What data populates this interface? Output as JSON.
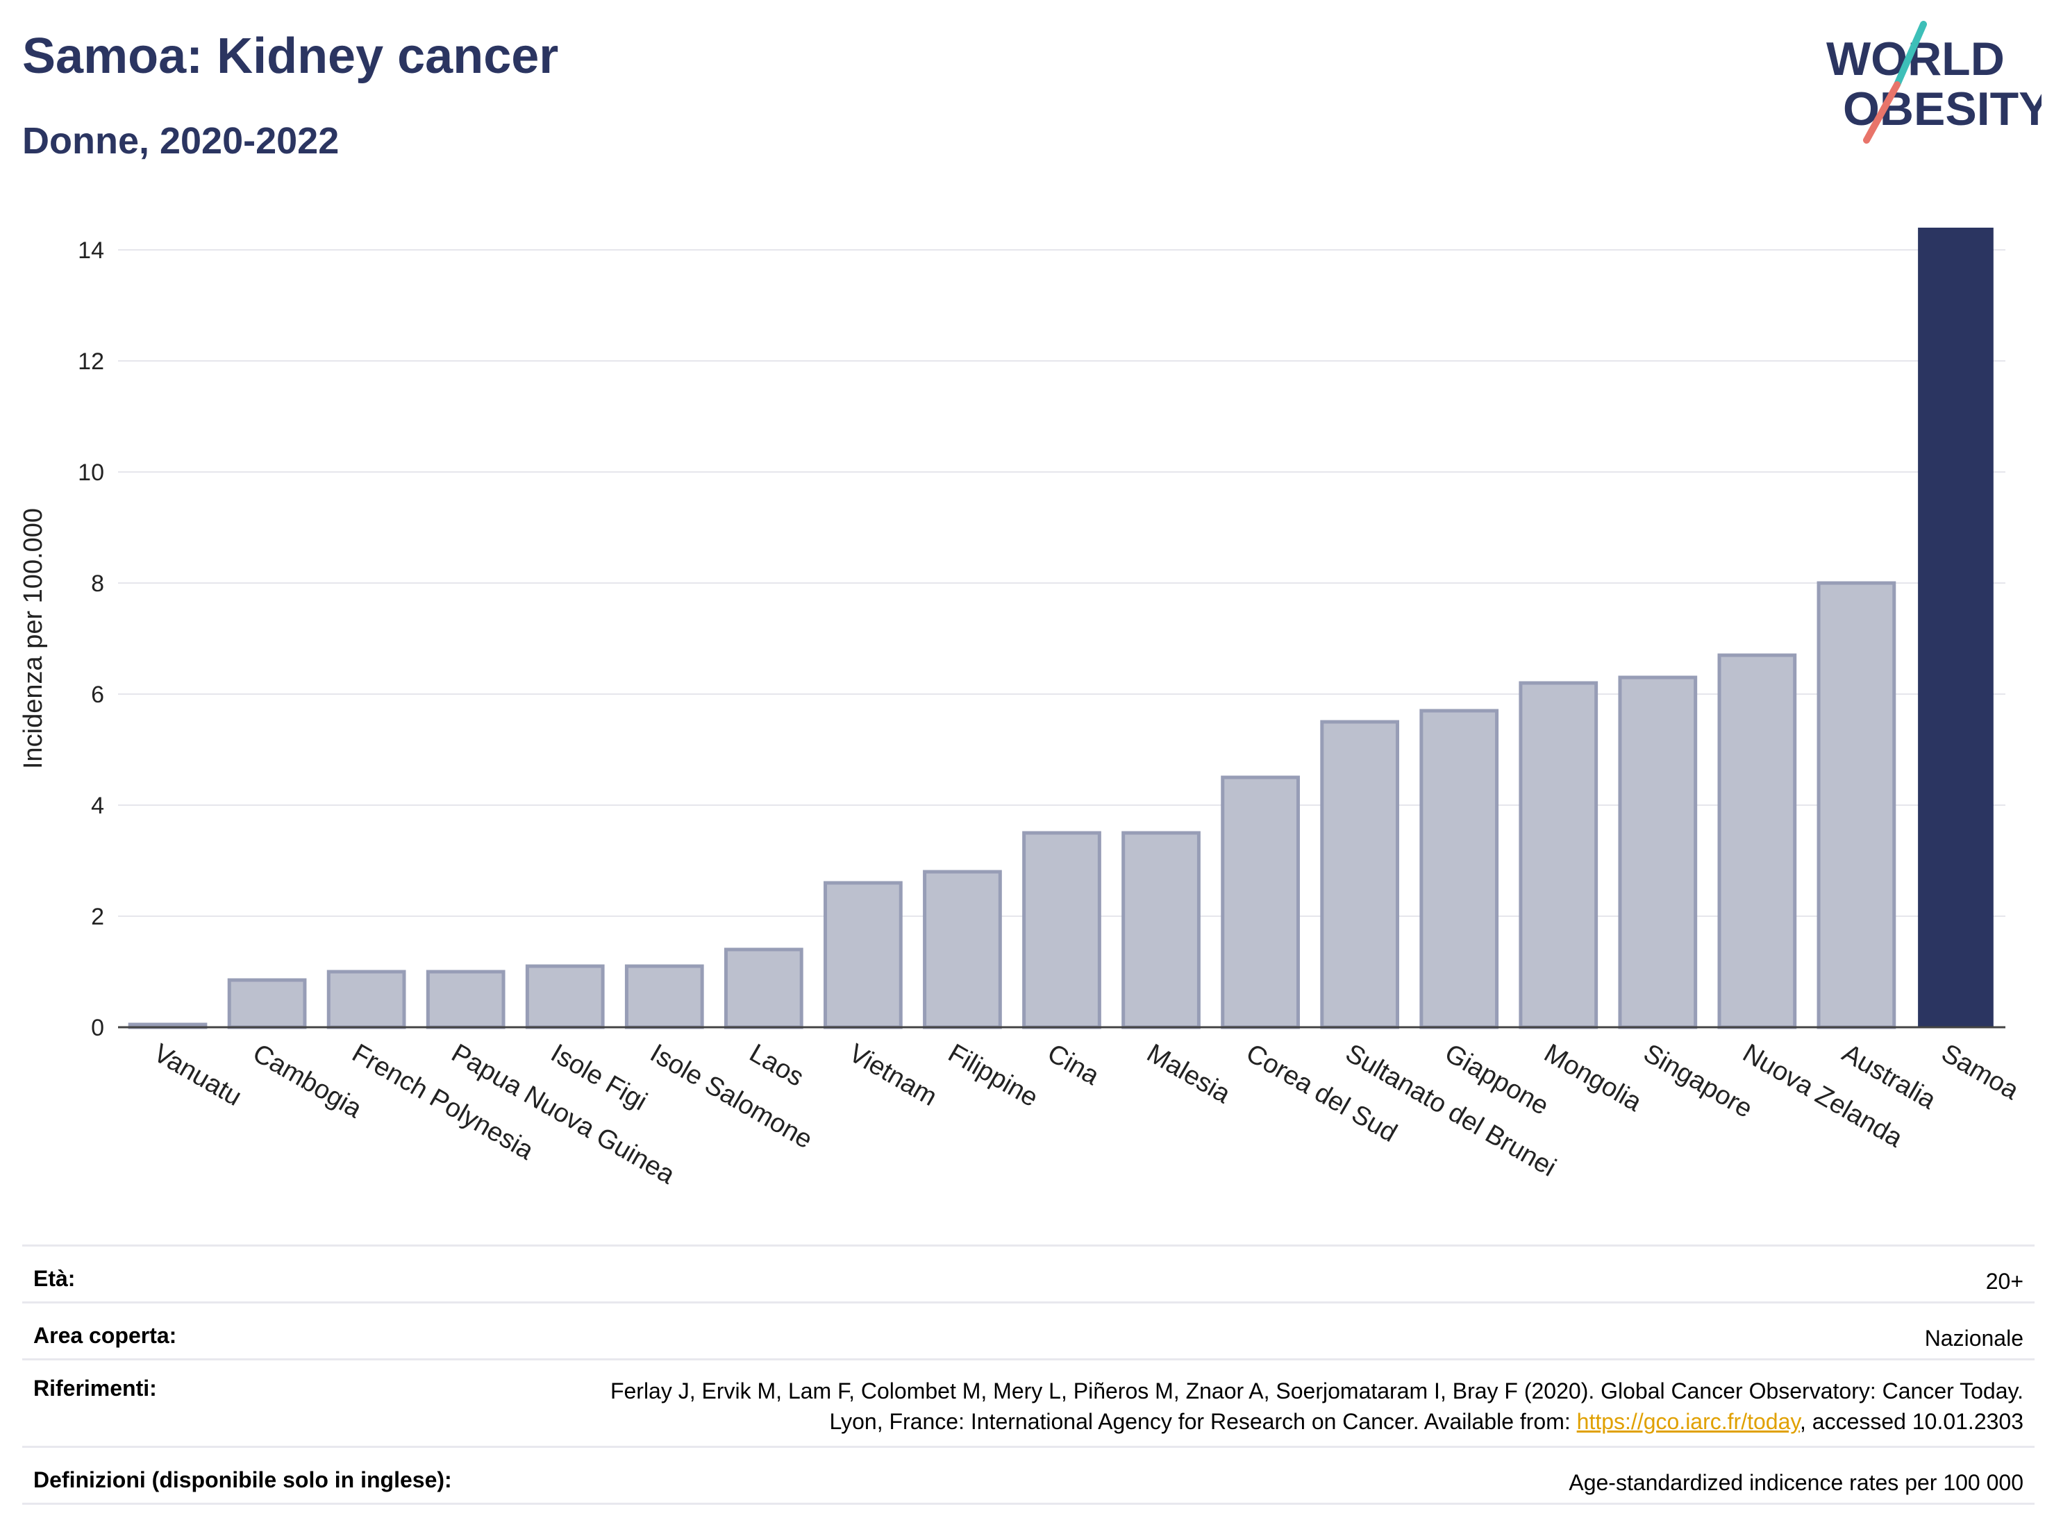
{
  "header": {
    "title": "Samoa: Kidney cancer",
    "subtitle": "Donne, 2020-2022"
  },
  "logo": {
    "line1": "WORLD",
    "line2": "OBESITY"
  },
  "colors": {
    "highlight": "#2b3561",
    "bar_fill": "#bcc0ce",
    "bar_stroke": "#979db6",
    "title": "#2b3561",
    "link": "#e0a000"
  },
  "chart_data": {
    "type": "bar",
    "ylabel": "Incidenza per 100.000",
    "xlabel": "",
    "ylim": [
      0,
      14.5
    ],
    "yticks": [
      0,
      2,
      4,
      6,
      8,
      10,
      12,
      14
    ],
    "grid": true,
    "legend": "none",
    "highlight": "Samoa",
    "categories": [
      "Vanuatu",
      "Cambogia",
      "French Polynesia",
      "Papua Nuova Guinea",
      "Isole Figi",
      "Isole Salomone",
      "Laos",
      "Vietnam",
      "Filippine",
      "Cina",
      "Malesia",
      "Corea del Sud",
      "Sultanato del Brunei",
      "Giappone",
      "Mongolia",
      "Singapore",
      "Nuova Zelanda",
      "Australia",
      "Samoa"
    ],
    "values": [
      0.05,
      0.85,
      1.0,
      1.0,
      1.1,
      1.1,
      1.4,
      2.6,
      2.8,
      3.5,
      3.5,
      4.5,
      5.5,
      5.7,
      6.2,
      6.3,
      6.7,
      8.0,
      14.4
    ]
  },
  "meta": {
    "rows": [
      {
        "label": "Età:",
        "value": "20+"
      },
      {
        "label": "Area coperta:",
        "value": "Nazionale"
      },
      {
        "label": "Riferimenti:",
        "value_pre": "Ferlay J, Ervik M, Lam F, Colombet M, Mery L, Piñeros M, Znaor A, Soerjomataram I, Bray F (2020). Global Cancer Observatory: Cancer Today. Lyon, France: International Agency for Research on Cancer. Available from: ",
        "link": "https://gco.iarc.fr/today",
        "value_post": ", accessed 10.01.2303"
      },
      {
        "label": "Definizioni (disponibile solo in inglese):",
        "value": "Age-standardized indicence rates per 100 000"
      }
    ]
  }
}
